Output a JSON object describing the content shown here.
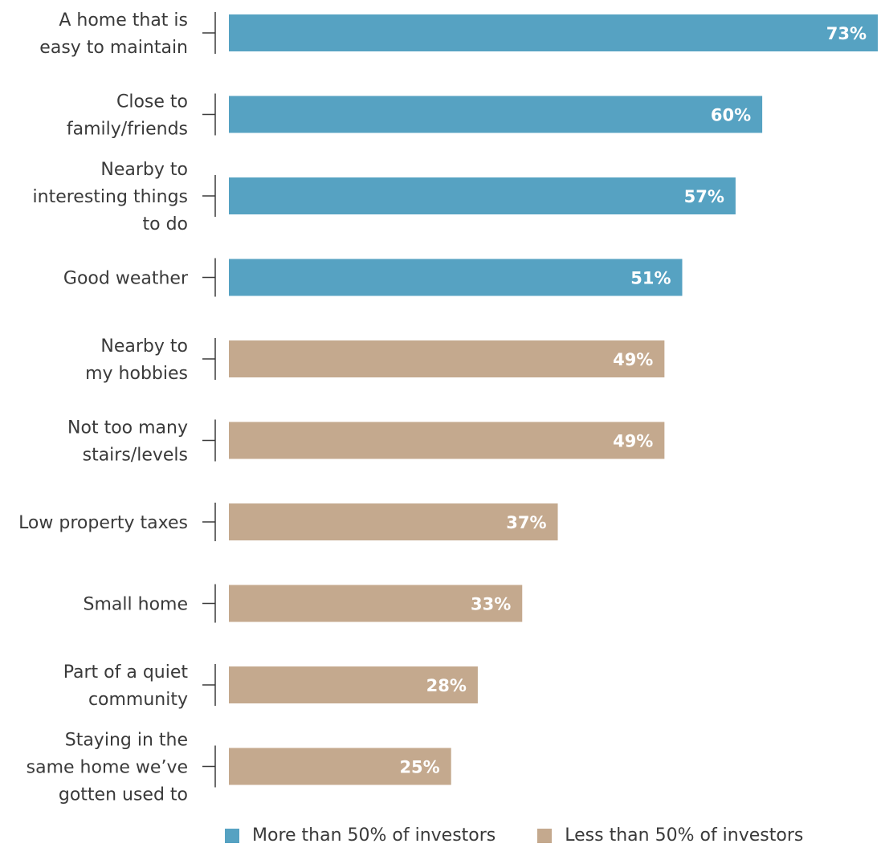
{
  "chart_data": {
    "type": "bar",
    "orientation": "horizontal",
    "categories": [
      [
        "A home that is",
        "easy to maintain"
      ],
      [
        "Close to",
        "family/friends"
      ],
      [
        "Nearby to",
        "interesting things",
        "to do"
      ],
      [
        "Good weather"
      ],
      [
        "Nearby to",
        "my hobbies"
      ],
      [
        "Not too many",
        "stairs/levels"
      ],
      [
        "Low property taxes"
      ],
      [
        "Small home"
      ],
      [
        "Part of a quiet",
        "community"
      ],
      [
        "Staying in the",
        "same home we’ve",
        "gotten used to"
      ]
    ],
    "values": [
      73,
      60,
      57,
      51,
      49,
      49,
      37,
      33,
      28,
      25
    ],
    "value_labels": [
      "73%",
      "60%",
      "57%",
      "51%",
      "49%",
      "49%",
      "37%",
      "33%",
      "28%",
      "25%"
    ],
    "groups": [
      "more",
      "more",
      "more",
      "more",
      "less",
      "less",
      "less",
      "less",
      "less",
      "less"
    ],
    "title": "",
    "xlabel": "",
    "ylabel": "",
    "xlim": [
      0,
      73
    ],
    "grid": false,
    "legend_position": "bottom",
    "colors": {
      "more": "#56a2c2",
      "less": "#c4a98e"
    }
  },
  "legend": {
    "items": [
      {
        "label": "More than 50% of investors",
        "color": "#56a2c2"
      },
      {
        "label": "Less than 50% of investors",
        "color": "#c4a98e"
      }
    ]
  }
}
